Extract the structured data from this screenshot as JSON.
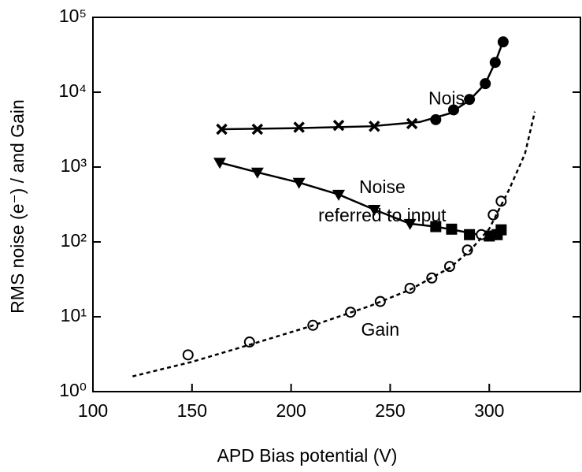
{
  "chart_data": {
    "type": "scatter",
    "xlabel": "APD Bias potential (V)",
    "ylabel": "RMS noise (e⁻) / and Gain",
    "xlim": [
      100,
      346
    ],
    "xticks": [
      100,
      150,
      200,
      250,
      300
    ],
    "ylim": [
      1,
      100000
    ],
    "log_y": true,
    "yticks": [
      {
        "value": 1,
        "label": "10⁰"
      },
      {
        "value": 10,
        "label": "10¹"
      },
      {
        "value": 100,
        "label": "10²"
      },
      {
        "value": 1000,
        "label": "10³"
      },
      {
        "value": 10000,
        "label": "10⁴"
      },
      {
        "value": 100000,
        "label": "10⁵"
      }
    ],
    "color": "#000000",
    "annotations": [
      {
        "lines": [
          "Noise"
        ],
        "x": 281,
        "y": 8000
      },
      {
        "lines": [
          "Noise",
          "referred to input"
        ],
        "x": 246,
        "y": 520
      },
      {
        "lines": [
          "Gain"
        ],
        "x": 245,
        "y": 6.5
      }
    ],
    "series": [
      {
        "marker": "x",
        "x": [
          165,
          183,
          204,
          224,
          242,
          261
        ],
        "values": [
          3200,
          3200,
          3400,
          3600,
          3500,
          3800
        ]
      },
      {
        "marker": "circle-filled",
        "x": [
          273,
          282,
          290,
          298,
          303,
          307
        ],
        "values": [
          4300,
          5800,
          8000,
          13000,
          25000,
          47000
        ]
      },
      {
        "marker": "line",
        "dash": "solid",
        "x": [
          165,
          200,
          240,
          265,
          280,
          290,
          298,
          303,
          307
        ],
        "values": [
          3200,
          3300,
          3500,
          4000,
          5200,
          7800,
          13000,
          25000,
          48000
        ]
      },
      {
        "marker": "triangle-down",
        "x": [
          164,
          183,
          204,
          224,
          242,
          260
        ],
        "values": [
          1150,
          850,
          620,
          430,
          270,
          175
        ]
      },
      {
        "marker": "square",
        "x": [
          273,
          281,
          290,
          300,
          304,
          306
        ],
        "values": [
          160,
          148,
          125,
          120,
          125,
          145
        ]
      },
      {
        "marker": "line",
        "dash": "solid",
        "x": [
          164,
          183,
          204,
          224,
          242,
          260,
          273,
          285,
          298
        ],
        "values": [
          1150,
          850,
          620,
          430,
          270,
          175,
          160,
          140,
          120
        ]
      },
      {
        "marker": "circle-open",
        "x": [
          148,
          179,
          211,
          230,
          245,
          260,
          271,
          280,
          289,
          296,
          302,
          306
        ],
        "values": [
          3.1,
          4.6,
          7.7,
          11.5,
          16,
          24,
          33,
          47,
          78,
          125,
          230,
          350
        ]
      },
      {
        "marker": "line",
        "dash": "dashed",
        "x": [
          120,
          150,
          180,
          210,
          240,
          260,
          280,
          290,
          300,
          310,
          318,
          323
        ],
        "values": [
          1.6,
          2.5,
          4.3,
          7.5,
          14,
          23,
          45,
          75,
          150,
          500,
          1500,
          5500
        ]
      }
    ]
  }
}
